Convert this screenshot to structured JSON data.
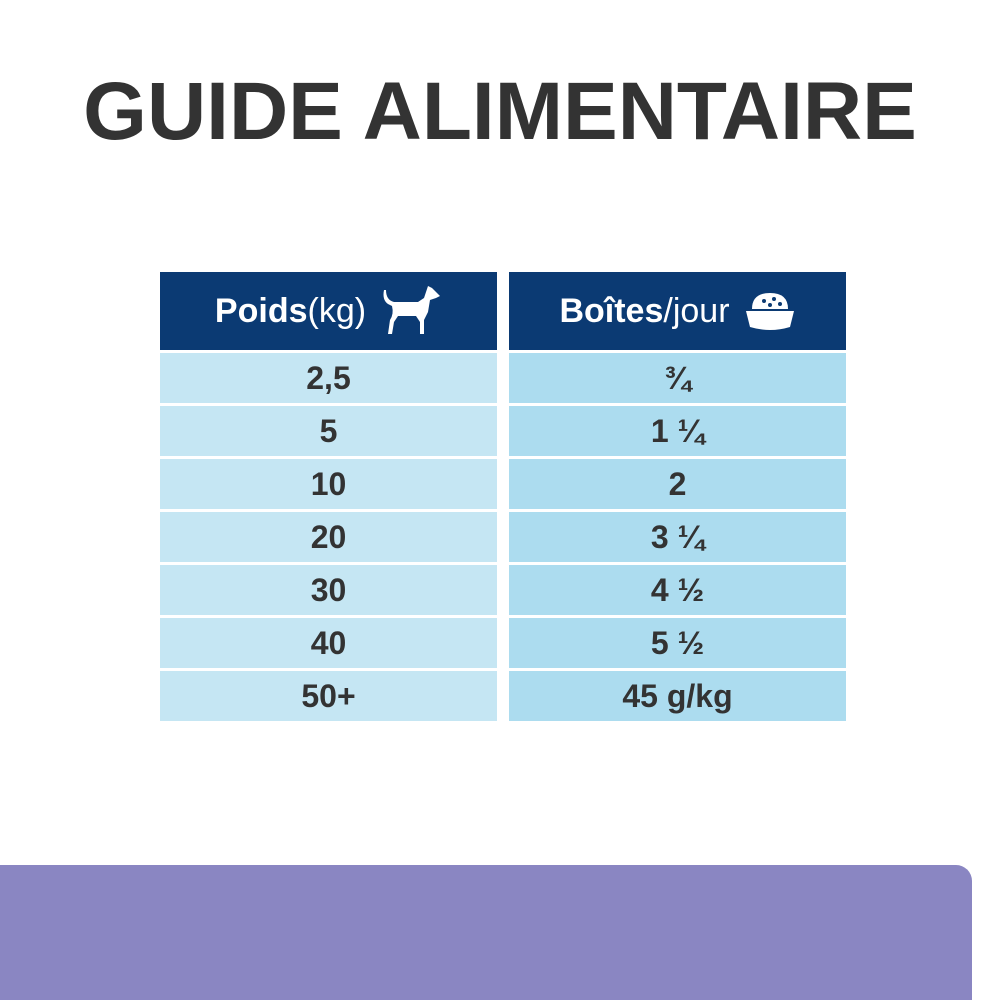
{
  "title": "GUIDE ALIMENTAIRE",
  "colors": {
    "header": "#0b3a73",
    "col1": "#c5e6f3",
    "col2": "#acdcef",
    "band": "#8a86c2",
    "text": "#333333"
  },
  "table": {
    "headers": [
      {
        "bold": "Poids",
        "light": " (kg)",
        "icon": "dog-icon"
      },
      {
        "bold": "Boîtes",
        "light": "/jour",
        "icon": "food-bowl-icon"
      }
    ],
    "rows": [
      [
        "2,5",
        "¾"
      ],
      [
        "5",
        "1 ¼"
      ],
      [
        "10",
        "2"
      ],
      [
        "20",
        "3 ¼"
      ],
      [
        "30",
        "4 ½"
      ],
      [
        "40",
        "5 ½"
      ],
      [
        "50+",
        "45 g/kg"
      ]
    ]
  }
}
